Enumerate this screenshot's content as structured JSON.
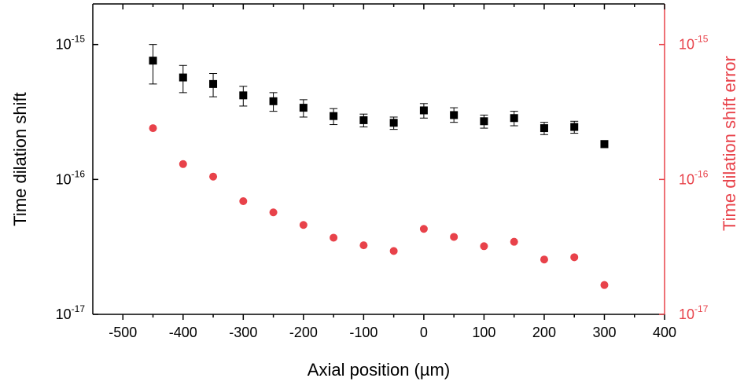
{
  "chart_data": {
    "type": "scatter",
    "xlabel": "Axial position (µm)",
    "ylabel": "Time dilation shift",
    "y2label": "Time dilation shift error",
    "xlim": [
      -550,
      400
    ],
    "ylim": [
      1e-17,
      2e-15
    ],
    "y2lim": [
      1e-17,
      2e-15
    ],
    "yscale": "log",
    "y2scale": "log",
    "x_ticks": [
      -500,
      -400,
      -300,
      -200,
      -100,
      0,
      100,
      200,
      300,
      400
    ],
    "x_tick_labels": [
      "-500",
      "-400",
      "-300",
      "-200",
      "-100",
      "0",
      "100",
      "200",
      "300",
      "400"
    ],
    "y_ticks": [
      {
        "base": "10",
        "exp": "-17",
        "value": 1e-17
      },
      {
        "base": "10",
        "exp": "-16",
        "value": 1e-16
      },
      {
        "base": "10",
        "exp": "-15",
        "value": 1e-15
      }
    ],
    "y2_ticks": [
      {
        "base": "10",
        "exp": "-17",
        "value": 1e-17
      },
      {
        "base": "10",
        "exp": "-16",
        "value": 1e-16
      },
      {
        "base": "10",
        "exp": "-15",
        "value": 1e-15
      }
    ],
    "colors": {
      "primary": "#000000",
      "secondary": "#e8424a"
    },
    "grid": false,
    "series": [
      {
        "axis": "left",
        "marker": "square",
        "color": "#000000",
        "x": [
          -450,
          -400,
          -350,
          -300,
          -250,
          -200,
          -150,
          -100,
          -50,
          0,
          50,
          100,
          150,
          200,
          250,
          300
        ],
        "y": [
          7.6e-16,
          5.7e-16,
          5.1e-16,
          4.2e-16,
          3.8e-16,
          3.4e-16,
          2.95e-16,
          2.75e-16,
          2.63e-16,
          3.25e-16,
          3e-16,
          2.7e-16,
          2.85e-16,
          2.4e-16,
          2.45e-16,
          1.83e-16
        ],
        "y_err_low": [
          5.1e-16,
          4.4e-16,
          4.1e-16,
          3.5e-16,
          3.2e-16,
          2.9e-16,
          2.55e-16,
          2.45e-16,
          2.35e-16,
          2.85e-16,
          2.65e-16,
          2.4e-16,
          2.5e-16,
          2.15e-16,
          2.2e-16,
          1.72e-16
        ],
        "y_err_high": [
          1e-15,
          7e-16,
          6.1e-16,
          4.9e-16,
          4.4e-16,
          3.9e-16,
          3.35e-16,
          3.05e-16,
          2.9e-16,
          3.65e-16,
          3.4e-16,
          3e-16,
          3.2e-16,
          2.65e-16,
          2.7e-16,
          1.94e-16
        ]
      },
      {
        "axis": "right",
        "marker": "circle",
        "color": "#e8424a",
        "x": [
          -450,
          -400,
          -350,
          -300,
          -250,
          -200,
          -150,
          -100,
          -50,
          0,
          50,
          100,
          150,
          200,
          250,
          300
        ],
        "y": [
          2.4e-16,
          1.3e-16,
          1.05e-16,
          6.9e-17,
          5.7e-17,
          4.6e-17,
          3.7e-17,
          3.25e-17,
          2.95e-17,
          4.3e-17,
          3.75e-17,
          3.2e-17,
          3.45e-17,
          2.55e-17,
          2.65e-17,
          1.65e-17
        ]
      }
    ]
  }
}
